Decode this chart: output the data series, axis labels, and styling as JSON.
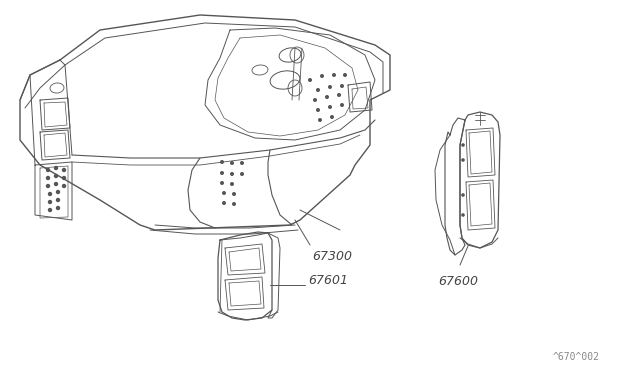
{
  "background_color": "#ffffff",
  "line_color": "#555555",
  "label_color": "#444444",
  "diagram_id": "^670^002",
  "fig_width": 6.4,
  "fig_height": 3.72,
  "dpi": 100
}
